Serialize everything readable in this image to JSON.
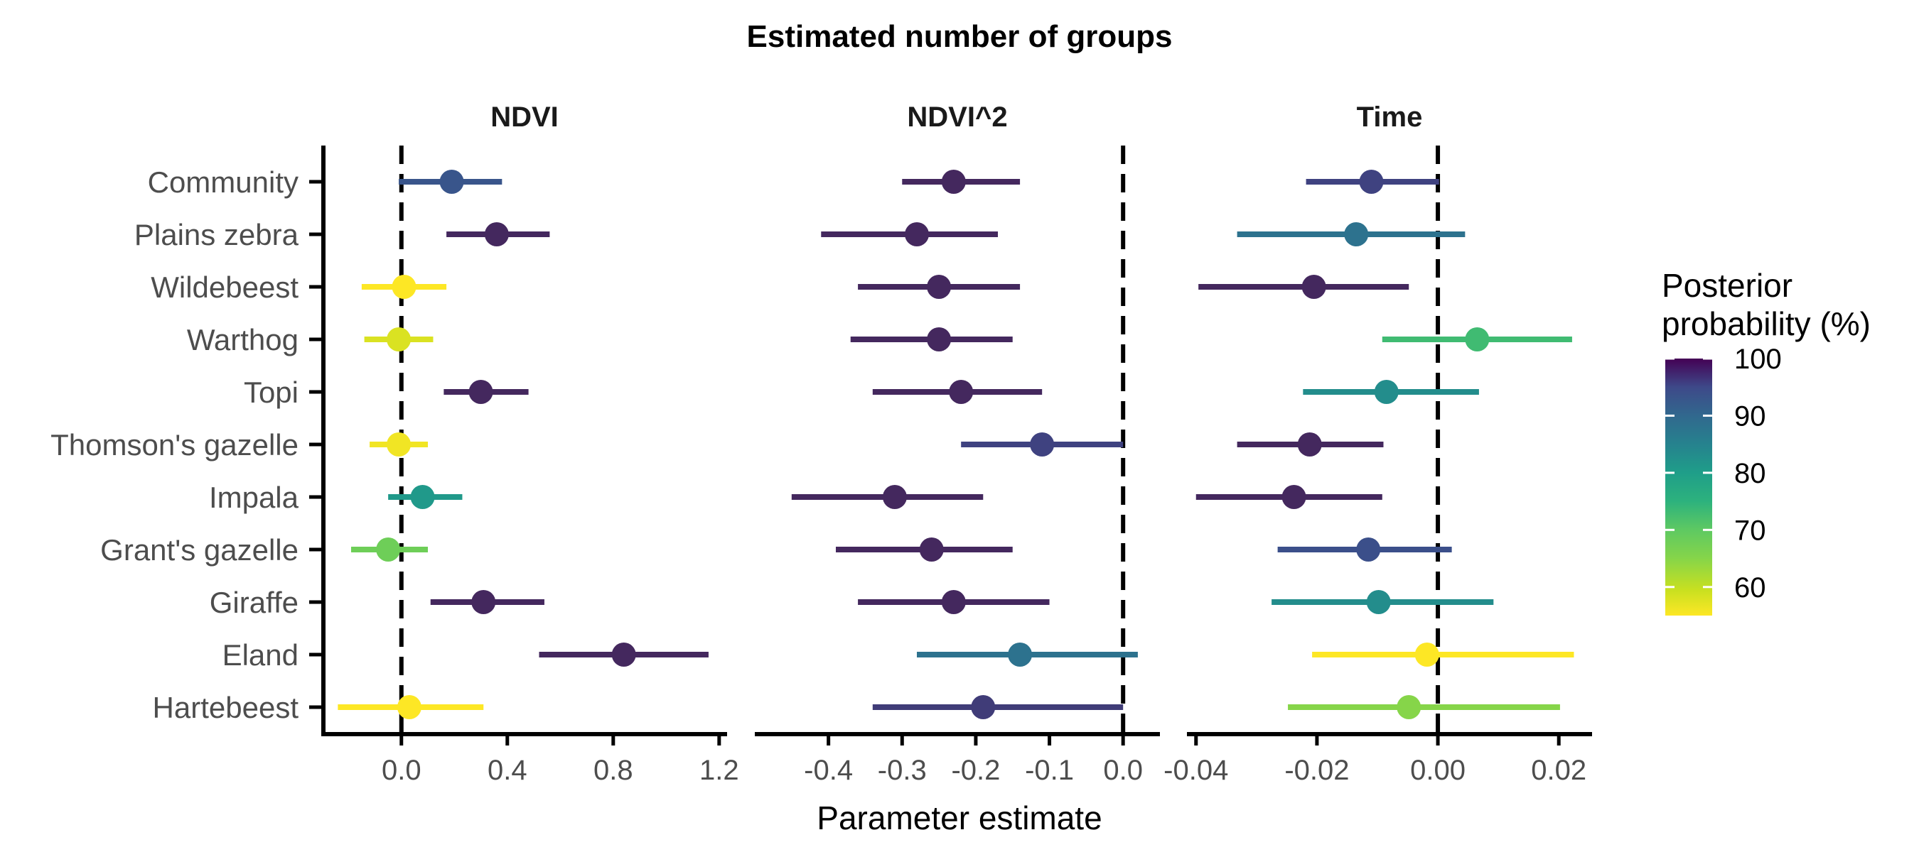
{
  "chart_data": {
    "type": "scatter",
    "title": "Estimated number of groups",
    "xlabel": "Parameter estimate",
    "categories": [
      "Community",
      "Plains zebra",
      "Wildebeest",
      "Warthog",
      "Topi",
      "Thomson's gazelle",
      "Impala",
      "Grant's gazelle",
      "Giraffe",
      "Eland",
      "Hartebeest"
    ],
    "panels": [
      {
        "name": "NDVI",
        "xlim": [
          -0.3,
          1.23
        ],
        "ticks": [
          0.0,
          0.4,
          0.8,
          1.2
        ],
        "tick_labels": [
          "0.0",
          "0.4",
          "0.8",
          "1.2"
        ],
        "estimate": [
          0.19,
          0.36,
          0.01,
          -0.01,
          0.3,
          -0.01,
          0.08,
          -0.05,
          0.31,
          0.84,
          0.03
        ],
        "lower": [
          -0.01,
          0.17,
          -0.15,
          -0.14,
          0.16,
          -0.12,
          -0.05,
          -0.19,
          0.11,
          0.52,
          -0.24
        ],
        "upper": [
          0.38,
          0.56,
          0.17,
          0.12,
          0.48,
          0.1,
          0.23,
          0.1,
          0.54,
          1.16,
          0.31
        ],
        "posterior_probability": [
          93,
          100,
          55,
          58,
          100,
          56,
          81,
          68,
          100,
          100,
          55
        ]
      },
      {
        "name": "NDVI^2",
        "xlim": [
          -0.5,
          0.05
        ],
        "ticks": [
          -0.4,
          -0.3,
          -0.2,
          -0.1,
          0.0
        ],
        "tick_labels": [
          "-0.4",
          "-0.3",
          "-0.2",
          "-0.1",
          "0.0"
        ],
        "estimate": [
          -0.23,
          -0.28,
          -0.25,
          -0.25,
          -0.22,
          -0.11,
          -0.31,
          -0.26,
          -0.23,
          -0.14,
          -0.19
        ],
        "lower": [
          -0.3,
          -0.41,
          -0.36,
          -0.37,
          -0.34,
          -0.22,
          -0.45,
          -0.39,
          -0.36,
          -0.28,
          -0.34
        ],
        "upper": [
          -0.14,
          -0.17,
          -0.14,
          -0.15,
          -0.11,
          0.0,
          -0.19,
          -0.15,
          -0.1,
          0.02,
          0.0
        ],
        "posterior_probability": [
          100,
          100,
          100,
          100,
          100,
          96,
          100,
          100,
          100,
          88,
          97
        ]
      },
      {
        "name": "Time",
        "xlim": [
          -0.0415,
          0.0255
        ],
        "ticks": [
          -0.04,
          -0.02,
          0.0,
          0.02
        ],
        "tick_labels": [
          "-0.04",
          "-0.02",
          "0.00",
          "0.02"
        ],
        "estimate": [
          -0.011,
          -0.0135,
          -0.0205,
          0.0065,
          -0.0085,
          -0.0212,
          -0.0238,
          -0.0115,
          -0.0098,
          -0.0018,
          -0.0048
        ],
        "lower": [
          -0.0218,
          -0.0332,
          -0.0396,
          -0.0092,
          -0.0223,
          -0.0332,
          -0.04,
          -0.0265,
          -0.0275,
          -0.0208,
          -0.0248
        ],
        "upper": [
          0.0002,
          0.0045,
          -0.0048,
          0.0222,
          0.0068,
          -0.009,
          -0.0092,
          0.0023,
          0.0092,
          0.0225,
          0.0202
        ],
        "posterior_probability": [
          96,
          88,
          100,
          73,
          83,
          100,
          100,
          94,
          83,
          55,
          65
        ]
      }
    ],
    "reference_line": 0,
    "legend": {
      "title": "Posterior probability (%)",
      "title_lines": [
        "Posterior",
        "probability (%)"
      ],
      "position": "right",
      "ticks": [
        60,
        70,
        80,
        90,
        100
      ],
      "range": [
        55,
        100
      ],
      "colormap": "viridis-reversed"
    },
    "grid": false
  }
}
